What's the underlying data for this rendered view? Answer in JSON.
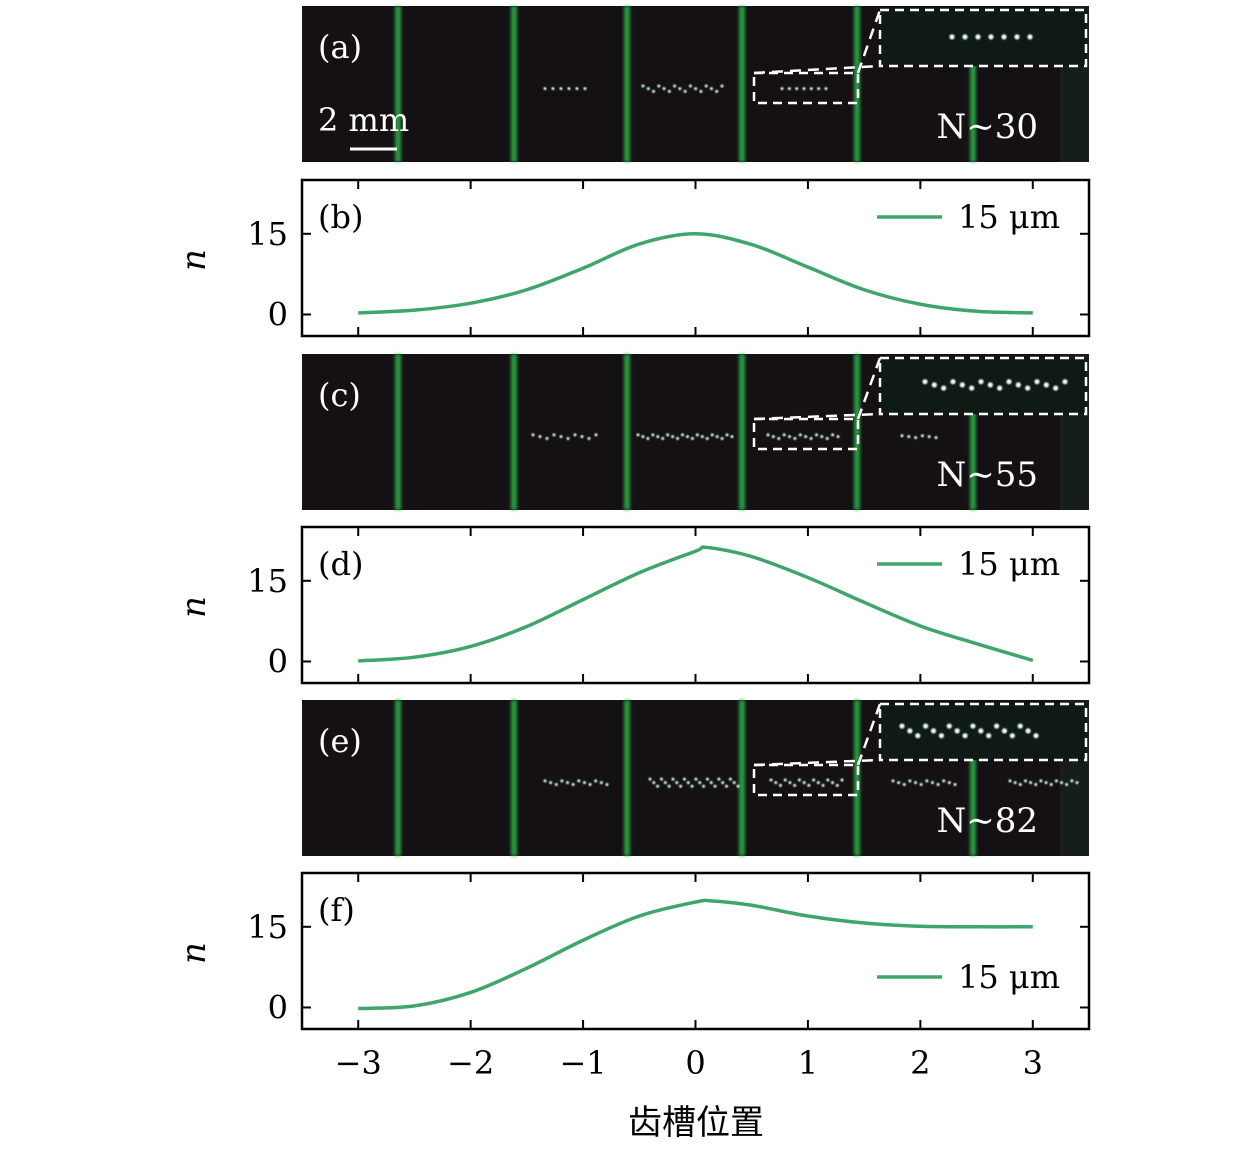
{
  "figure": {
    "xlabel": "齿槽位置",
    "ylabel": "n",
    "x_ticks": [
      "−3",
      "−2",
      "−1",
      "0",
      "1",
      "2",
      "3"
    ],
    "scale_bar": "2 mm"
  },
  "images": [
    {
      "label": "(a)",
      "count": "N∼30"
    },
    {
      "label": "(c)",
      "count": "N∼55"
    },
    {
      "label": "(e)",
      "count": "N∼82"
    }
  ],
  "colors": {
    "curve": "#3fa56b",
    "grain": "#2fb34a",
    "background": "#141014"
  },
  "chart_data": [
    {
      "type": "line",
      "label": "(b)",
      "ylabel": "n",
      "xlim": [
        -3.5,
        3.5
      ],
      "ylim": [
        -4,
        25
      ],
      "yticks": [
        "0",
        "15"
      ],
      "legend": "top-right",
      "series": [
        {
          "name": "15 μm",
          "x": [
            -3,
            -2.5,
            -2,
            -1.5,
            -1,
            -0.5,
            0,
            0.5,
            1,
            1.5,
            2,
            2.5,
            3
          ],
          "y": [
            0.3,
            0.8,
            2.1,
            4.6,
            8.6,
            13.1,
            15.0,
            13.0,
            8.8,
            4.6,
            1.9,
            0.6,
            0.3
          ]
        }
      ]
    },
    {
      "type": "line",
      "label": "(d)",
      "ylabel": "n",
      "xlim": [
        -3.5,
        3.5
      ],
      "ylim": [
        -4,
        25
      ],
      "yticks": [
        "0",
        "15"
      ],
      "legend": "top-right",
      "series": [
        {
          "name": "15 μm",
          "x": [
            -3,
            -2.5,
            -2,
            -1.5,
            -1,
            -0.5,
            0,
            0.1,
            0.5,
            1,
            1.5,
            2,
            2.5,
            3
          ],
          "y": [
            0.1,
            0.8,
            2.8,
            6.5,
            11.5,
            16.5,
            20.5,
            21.2,
            19.5,
            15.6,
            11.0,
            6.6,
            3.3,
            0.2
          ]
        }
      ]
    },
    {
      "type": "line",
      "label": "(f)",
      "ylabel": "n",
      "xlim": [
        -3.5,
        3.5
      ],
      "ylim": [
        -4,
        25
      ],
      "yticks": [
        "0",
        "15"
      ],
      "legend": "bottom-right",
      "series": [
        {
          "name": "15 μm",
          "x": [
            -3,
            -2.5,
            -2,
            -1.5,
            -1,
            -0.5,
            0,
            0.15,
            0.5,
            1,
            1.5,
            2,
            2.5,
            3
          ],
          "y": [
            -0.2,
            0.3,
            2.8,
            7.3,
            12.5,
            17.0,
            19.6,
            19.8,
            19.0,
            17.0,
            15.7,
            15.1,
            15.0,
            15.0
          ]
        }
      ]
    }
  ]
}
